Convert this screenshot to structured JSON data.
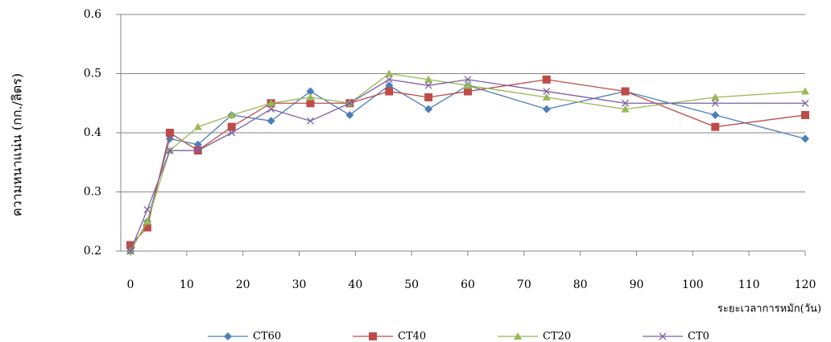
{
  "chart_data": {
    "type": "line",
    "y_label": "ความหนาแน่น (กก./ลิตร)",
    "x_label": "ระยะเวลาการหมัก(วัน)",
    "x": [
      0,
      3,
      7,
      12,
      18,
      25,
      32,
      39,
      46,
      53,
      60,
      74,
      88,
      104,
      120
    ],
    "series": [
      {
        "name": "CT60",
        "color": "#4a7ebb",
        "marker": "diamond",
        "values": [
          0.2,
          0.25,
          0.39,
          0.38,
          0.43,
          0.42,
          0.47,
          0.43,
          0.48,
          0.44,
          0.48,
          0.44,
          0.47,
          0.43,
          0.39
        ]
      },
      {
        "name": "CT40",
        "color": "#be4b48",
        "marker": "square",
        "values": [
          0.21,
          0.24,
          0.4,
          0.37,
          0.41,
          0.45,
          0.45,
          0.45,
          0.47,
          0.46,
          0.47,
          0.49,
          0.47,
          0.41,
          0.43
        ]
      },
      {
        "name": "CT20",
        "color": "#98b954",
        "marker": "triangle",
        "values": [
          0.2,
          0.25,
          0.37,
          0.41,
          0.43,
          0.45,
          0.46,
          0.45,
          0.5,
          0.49,
          0.48,
          0.46,
          0.44,
          0.46,
          0.47
        ]
      },
      {
        "name": "CT0",
        "color": "#7d60a0",
        "marker": "x",
        "values": [
          0.2,
          0.27,
          0.37,
          0.37,
          0.4,
          0.44,
          0.42,
          0.45,
          0.49,
          0.48,
          0.49,
          0.47,
          0.45,
          0.45,
          0.45
        ]
      }
    ],
    "xlim": [
      0,
      120
    ],
    "xticks": [
      0,
      10,
      20,
      30,
      40,
      50,
      60,
      70,
      80,
      90,
      100,
      110,
      120
    ],
    "ylim": [
      0.2,
      0.6
    ],
    "yticks": [
      0.2,
      0.3,
      0.4,
      0.5,
      0.6
    ],
    "grid": true,
    "legend": "bottom"
  }
}
